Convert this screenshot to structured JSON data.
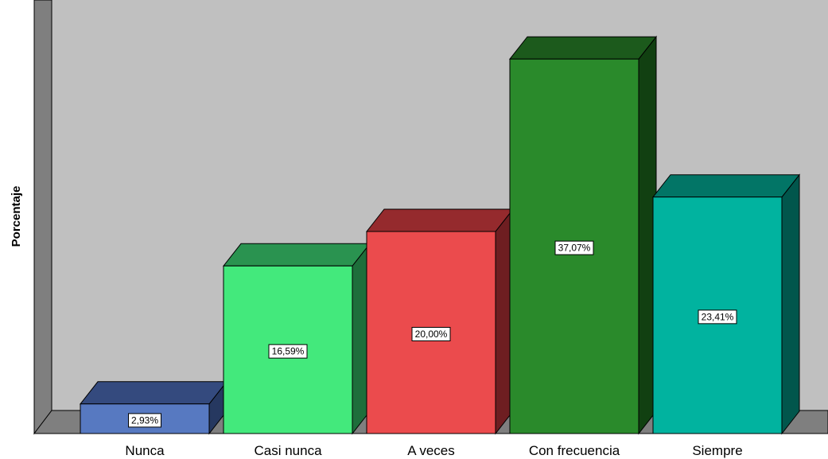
{
  "chart_data": {
    "type": "bar",
    "style": "3d",
    "ylabel": "Porcentaje",
    "xlabel": "",
    "categories": [
      "Nunca",
      "Casi nunca",
      "A veces",
      "Con frecuencia",
      "Siempre"
    ],
    "values": [
      2.93,
      16.59,
      20.0,
      37.07,
      23.41
    ],
    "data_labels": [
      "2,93%",
      "16,59%",
      "20,00%",
      "37,07%",
      "23,41%"
    ],
    "ylim": [
      0,
      40
    ],
    "grid": false,
    "colors": {
      "front": [
        "#5779c1",
        "#43e97c",
        "#eb4b4d",
        "#2a8a2b",
        "#01b39f"
      ],
      "top": [
        "#344a7e",
        "#2a9350",
        "#952a2d",
        "#1c5a1c",
        "#027566"
      ],
      "side": [
        "#263860",
        "#1e6e3b",
        "#6e1e21",
        "#114011",
        "#01564c"
      ],
      "plot_back": "#c0c0c0",
      "plot_floor": "#7f7f7f",
      "plot_wall": "#7f7f7f"
    }
  }
}
